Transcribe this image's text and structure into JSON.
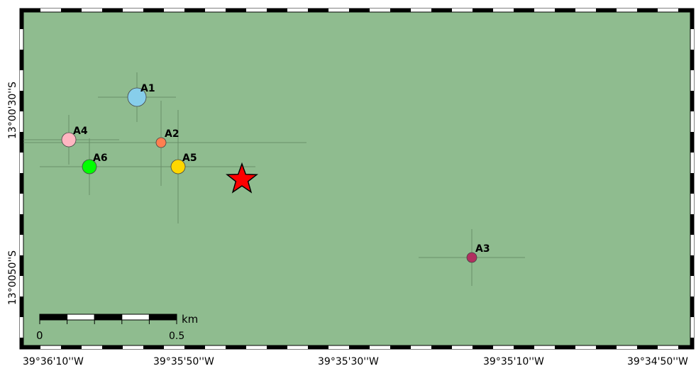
{
  "map": {
    "background_color": "#8fbc8f",
    "frame_colors": [
      "#000000",
      "#ffffff"
    ],
    "error_bar_color": "#6a8f6a",
    "epicenter": {
      "icon": "red-star-icon",
      "color": "#ff0000"
    },
    "stations": [
      {
        "label": "A1",
        "color": "#87ceeb"
      },
      {
        "label": "A2",
        "color": "#ff7f50"
      },
      {
        "label": "A3",
        "color": "#b0305f"
      },
      {
        "label": "A4",
        "color": "#ffb6c1"
      },
      {
        "label": "A5",
        "color": "#ffd700"
      },
      {
        "label": "A6",
        "color": "#00ff00"
      }
    ],
    "x_ticks": [
      "39°36'10''W",
      "39°35'50''W",
      "39°35'30''W",
      "39°35'10''W",
      "39°34'50''W"
    ],
    "y_ticks": [
      "13°00'30''S",
      "13°0050''S"
    ],
    "scale_bar": {
      "unit": "km",
      "start": "0",
      "end": "0.5"
    }
  }
}
